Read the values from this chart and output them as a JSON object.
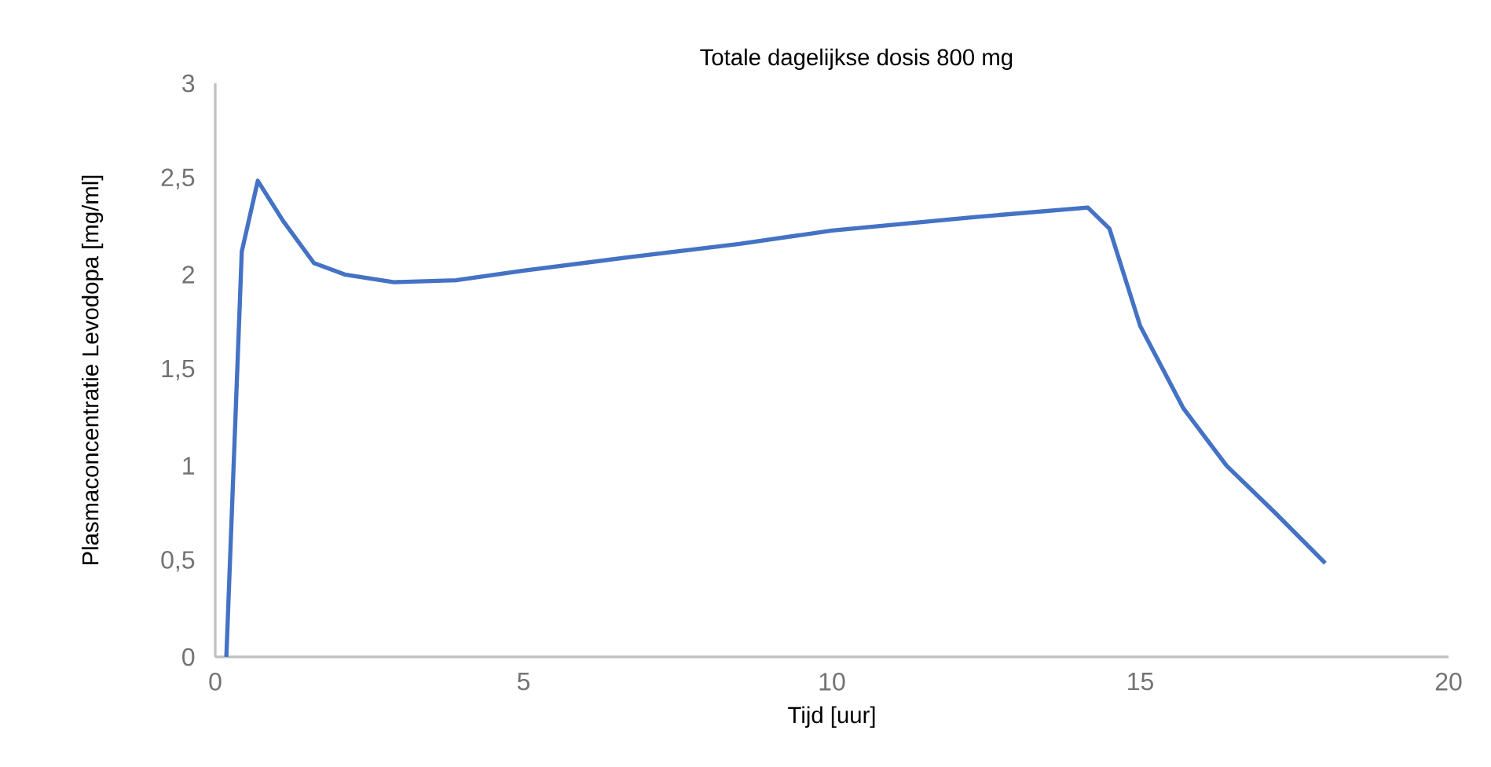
{
  "chart_data": {
    "type": "line",
    "title": "Totale dagelijkse dosis 800 mg",
    "xlabel": "Tijd [uur]",
    "ylabel": "Plasmaconcentratie Levodopa [mg/ml]",
    "xlim": [
      0,
      20
    ],
    "xticks": [
      0,
      5,
      10,
      15,
      20
    ],
    "ylim": [
      0,
      3
    ],
    "yticks": [
      0,
      {
        "value": 0.5,
        "label": "0,5"
      },
      1,
      {
        "value": 1.5,
        "label": "1,5"
      },
      2,
      {
        "value": 2.5,
        "label": "2,5"
      },
      3
    ],
    "series": [
      {
        "color": "#4472c4",
        "x": [
          0.18,
          0.43,
          0.69,
          1.1,
          1.6,
          2.1,
          2.9,
          3.9,
          5.0,
          6.7,
          8.5,
          10.0,
          12.3,
          14.15,
          14.5,
          15.0,
          15.7,
          16.4,
          17.2,
          18.0
        ],
        "values": [
          0,
          2.12,
          2.49,
          2.28,
          2.06,
          2.0,
          1.96,
          1.97,
          2.02,
          2.09,
          2.16,
          2.23,
          2.3,
          2.35,
          2.24,
          1.73,
          1.3,
          1.0,
          0.75,
          0.49
        ]
      }
    ]
  }
}
